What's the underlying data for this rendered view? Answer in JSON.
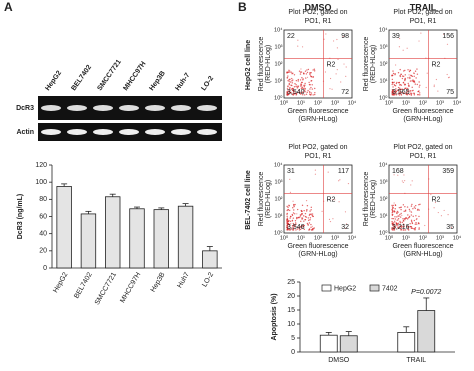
{
  "panel_a": {
    "label": "A",
    "lanes": [
      "HepG2",
      "BEL7402",
      "SMCC7721",
      "MHCC97H",
      "Hep3B",
      "Huh-7",
      "LO-2"
    ],
    "rows": [
      "DcR3",
      "Actin"
    ]
  },
  "panel_b": {
    "label": "B",
    "columns": [
      "DMSO",
      "TRAIL"
    ],
    "rows": [
      "HepG2 cell line",
      "BEL-7402 cell line"
    ],
    "axis_ticks": [
      "10⁰",
      "10¹",
      "10²",
      "10³",
      "10⁴"
    ],
    "plots": [
      {
        "title": [
          "Plot PO2, gated on",
          "PO1, R1"
        ],
        "y_label": [
          "Red fluorescence",
          "(RED-HLog)"
        ],
        "x_label": [
          "Green fluorescence",
          "(GRN-HLog)"
        ],
        "region": "R2",
        "quadrants": [
          "22",
          "98",
          "3,540",
          "72"
        ]
      },
      {
        "title": [
          "Plot PO2, gated on",
          "PO1, R1"
        ],
        "y_label": [
          "Red fluorescence",
          "(RED-HLog)"
        ],
        "x_label": [
          "Green fluorescence",
          "(GRN-HLog)"
        ],
        "region": "R2",
        "quadrants": [
          "39",
          "156",
          "3,565",
          "75"
        ]
      },
      {
        "title": [
          "Plot PO2, gated on",
          "PO1, R1"
        ],
        "y_label": [
          "Red fluorescence",
          "(RED-HLog)"
        ],
        "x_label": [
          "Green fluorescence",
          "(GRN-HLog)"
        ],
        "region": "R2",
        "quadrants": [
          "31",
          "117",
          "3,546",
          "32"
        ]
      },
      {
        "title": [
          "Plot PO2, gated on",
          "PO1, R1"
        ],
        "y_label": [
          "Red fluorescence",
          "(RED-HLog)"
        ],
        "x_label": [
          "Green fluorescence",
          "(GRN-HLog)"
        ],
        "region": "R2",
        "quadrants": [
          "168",
          "359",
          "3,216",
          "35"
        ]
      }
    ]
  },
  "chart_data": [
    {
      "type": "bar",
      "y_label": "DcR3 (ng/mL)",
      "categories": [
        "HepG2",
        "BEL7402",
        "SMCC7721",
        "MHCC97H",
        "Hep3B",
        "Huh7",
        "LO-2"
      ],
      "values": [
        95,
        63,
        83,
        69,
        68,
        72,
        20
      ],
      "errors": [
        3,
        3,
        3,
        2,
        2,
        3,
        5
      ],
      "color": "#e4e4e4",
      "ylim": [
        0,
        120
      ],
      "yticks": [
        0,
        20,
        40,
        60,
        80,
        100,
        120
      ]
    },
    {
      "type": "grouped_bar",
      "y_label": "Apoptosis (%)",
      "categories": [
        "DMSO",
        "TRAIL"
      ],
      "series": [
        {
          "name": "HepG2",
          "color": "#ffffff",
          "values": [
            6,
            7
          ],
          "errors": [
            1,
            2
          ]
        },
        {
          "name": "7402",
          "color": "#d9d9d9",
          "values": [
            5.8,
            14.8
          ],
          "errors": [
            1.5,
            4.5
          ]
        }
      ],
      "ylim": [
        0,
        25
      ],
      "yticks": [
        0,
        5,
        10,
        15,
        20,
        25
      ],
      "annotation": "P=0.0072"
    }
  ]
}
